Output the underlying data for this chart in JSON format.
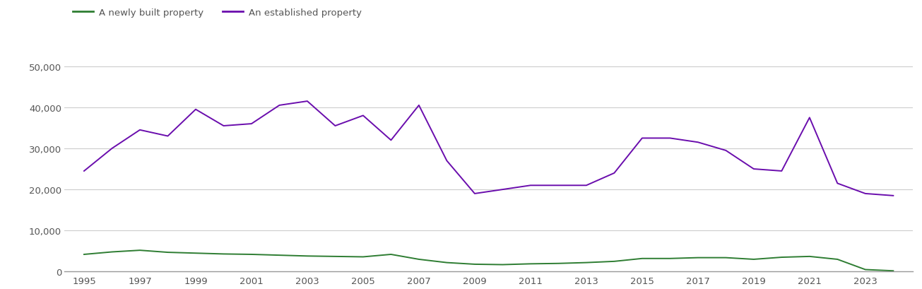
{
  "years": [
    1995,
    1996,
    1997,
    1998,
    1999,
    2000,
    2001,
    2002,
    2003,
    2004,
    2005,
    2006,
    2007,
    2008,
    2009,
    2010,
    2011,
    2012,
    2013,
    2014,
    2015,
    2016,
    2017,
    2018,
    2019,
    2020,
    2021,
    2022,
    2023,
    2024
  ],
  "new_homes": [
    4200,
    4800,
    5200,
    4700,
    4500,
    4300,
    4200,
    4000,
    3800,
    3700,
    3600,
    4200,
    3000,
    2200,
    1800,
    1700,
    1900,
    2000,
    2200,
    2500,
    3200,
    3200,
    3400,
    3400,
    3000,
    3500,
    3700,
    3000,
    500,
    200
  ],
  "established_homes": [
    24500,
    30000,
    34500,
    33000,
    39500,
    35500,
    36000,
    40500,
    41500,
    35500,
    38000,
    32000,
    40500,
    27000,
    19000,
    20000,
    21000,
    21000,
    21000,
    24000,
    32500,
    32500,
    31500,
    29500,
    25000,
    24500,
    37500,
    21500,
    19000,
    18500
  ],
  "new_color": "#2e7d32",
  "established_color": "#6a0dad",
  "legend_new": "A newly built property",
  "legend_established": "An established property",
  "ylim": [
    0,
    55000
  ],
  "yticks": [
    0,
    10000,
    20000,
    30000,
    40000,
    50000
  ],
  "xticks": [
    1995,
    1997,
    1999,
    2001,
    2003,
    2005,
    2007,
    2009,
    2011,
    2013,
    2015,
    2017,
    2019,
    2021,
    2023
  ],
  "bg_color": "#ffffff",
  "grid_color": "#cccccc",
  "text_color": "#555555"
}
